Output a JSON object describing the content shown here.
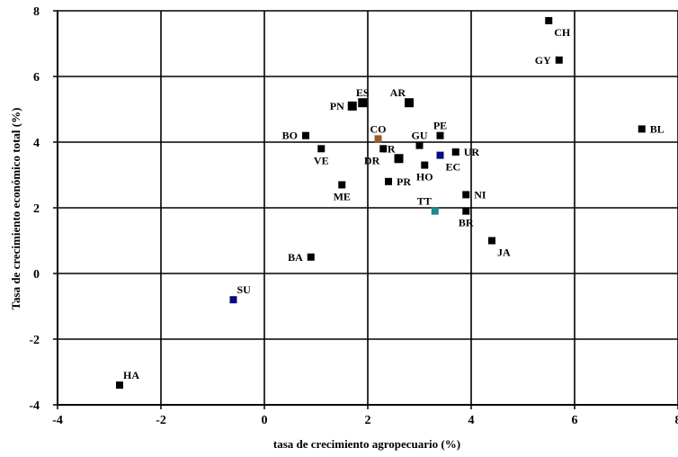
{
  "chart_data": {
    "type": "scatter",
    "xlabel": "tasa de crecimiento agropecuario (%)",
    "ylabel": "Tasa de crecimiento económico total (%)",
    "xlim": [
      -4,
      8
    ],
    "ylim": [
      -4,
      8
    ],
    "xticks": [
      -4,
      -2,
      0,
      2,
      4,
      6,
      8
    ],
    "yticks": [
      -4,
      -2,
      0,
      2,
      4,
      6,
      8
    ],
    "grid": true,
    "colors": {
      "default": "#000000",
      "brown": "#9a5a2a",
      "blue": "#0a0a80",
      "teal": "#1a8a8a"
    },
    "points": [
      {
        "label": "CH",
        "x": 5.5,
        "y": 7.7,
        "color": "default",
        "size": "normal",
        "label_pos": "below-right"
      },
      {
        "label": "GY",
        "x": 5.7,
        "y": 6.5,
        "color": "default",
        "size": "normal",
        "label_pos": "left"
      },
      {
        "label": "BL",
        "x": 7.3,
        "y": 4.4,
        "color": "default",
        "size": "normal",
        "label_pos": "right"
      },
      {
        "label": "ES",
        "x": 1.9,
        "y": 5.2,
        "color": "default",
        "size": "large",
        "label_pos": "above"
      },
      {
        "label": "PN",
        "x": 1.7,
        "y": 5.1,
        "color": "default",
        "size": "large",
        "label_pos": "left"
      },
      {
        "label": "AR",
        "x": 2.8,
        "y": 5.2,
        "color": "default",
        "size": "large",
        "label_pos": "above-left"
      },
      {
        "label": "BO",
        "x": 0.8,
        "y": 4.2,
        "color": "default",
        "size": "normal",
        "label_pos": "left"
      },
      {
        "label": "VE",
        "x": 1.1,
        "y": 3.8,
        "color": "default",
        "size": "normal",
        "label_pos": "below"
      },
      {
        "label": "CO",
        "x": 2.2,
        "y": 4.1,
        "color": "brown",
        "size": "normal",
        "label_pos": "above"
      },
      {
        "label": "DR",
        "x": 2.3,
        "y": 3.8,
        "color": "default",
        "size": "normal",
        "label_pos": "below-left"
      },
      {
        "label": "CR",
        "x": 2.6,
        "y": 3.5,
        "color": "default",
        "size": "large",
        "label_pos": "above-left"
      },
      {
        "label": "GU",
        "x": 3.0,
        "y": 3.9,
        "color": "default",
        "size": "normal",
        "label_pos": "above"
      },
      {
        "label": "PE",
        "x": 3.4,
        "y": 4.2,
        "color": "default",
        "size": "normal",
        "label_pos": "above"
      },
      {
        "label": "HO",
        "x": 3.1,
        "y": 3.3,
        "color": "default",
        "size": "normal",
        "label_pos": "below"
      },
      {
        "label": "EC",
        "x": 3.4,
        "y": 3.6,
        "color": "blue",
        "size": "normal",
        "label_pos": "below-right"
      },
      {
        "label": "UR",
        "x": 3.7,
        "y": 3.7,
        "color": "default",
        "size": "normal",
        "label_pos": "right"
      },
      {
        "label": "PR",
        "x": 2.4,
        "y": 2.8,
        "color": "default",
        "size": "normal",
        "label_pos": "right"
      },
      {
        "label": "ME",
        "x": 1.5,
        "y": 2.7,
        "color": "default",
        "size": "normal",
        "label_pos": "below"
      },
      {
        "label": "NI",
        "x": 3.9,
        "y": 2.4,
        "color": "default",
        "size": "normal",
        "label_pos": "right"
      },
      {
        "label": "TT",
        "x": 3.3,
        "y": 1.9,
        "color": "teal",
        "size": "normal",
        "label_pos": "above-left"
      },
      {
        "label": "BR",
        "x": 3.9,
        "y": 1.9,
        "color": "default",
        "size": "normal",
        "label_pos": "below"
      },
      {
        "label": "JA",
        "x": 4.4,
        "y": 1.0,
        "color": "default",
        "size": "normal",
        "label_pos": "below-right"
      },
      {
        "label": "BA",
        "x": 0.9,
        "y": 0.5,
        "color": "default",
        "size": "normal",
        "label_pos": "left"
      },
      {
        "label": "SU",
        "x": -0.6,
        "y": -0.8,
        "color": "blue",
        "size": "normal",
        "label_pos": "above-right"
      },
      {
        "label": "HA",
        "x": -2.8,
        "y": -3.4,
        "color": "default",
        "size": "normal",
        "label_pos": "above-right"
      }
    ]
  }
}
